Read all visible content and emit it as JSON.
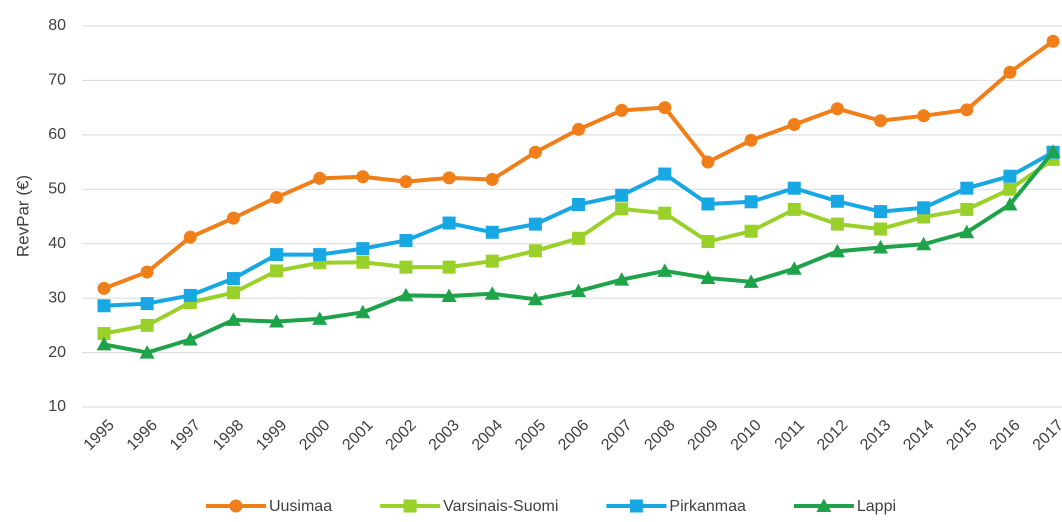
{
  "chart_data": {
    "type": "line",
    "y_label": "RevPar (€)",
    "categories": [
      "1995",
      "1996",
      "1997",
      "1998",
      "1999",
      "2000",
      "2001",
      "2002",
      "2003",
      "2004",
      "2005",
      "2006",
      "2007",
      "2008",
      "2009",
      "2010",
      "2011",
      "2012",
      "2013",
      "2014",
      "2015",
      "2016",
      "2017"
    ],
    "series": [
      {
        "name": "Uusimaa",
        "color": "#f07f1a",
        "marker": "circle",
        "values": [
          31.8,
          34.8,
          41.2,
          44.7,
          48.5,
          52,
          52.3,
          51.4,
          52.1,
          51.8,
          56.8,
          61,
          64.5,
          65,
          55,
          59,
          61.9,
          64.8,
          62.6,
          63.5,
          64.6,
          71.5,
          77.2
        ]
      },
      {
        "name": "Varsinais-Suomi",
        "color": "#99d12a",
        "marker": "square",
        "values": [
          23.5,
          25,
          29.2,
          31,
          35,
          36.5,
          36.6,
          35.7,
          35.7,
          36.8,
          38.7,
          41,
          46.4,
          45.6,
          40.4,
          42.3,
          46.3,
          43.6,
          42.7,
          44.9,
          46.3,
          50,
          55.5
        ]
      },
      {
        "name": "Pirkanmaa",
        "color": "#17a8e3",
        "marker": "square",
        "values": [
          28.6,
          29,
          30.5,
          33.6,
          38,
          38,
          39.1,
          40.6,
          43.8,
          42.1,
          43.6,
          47.2,
          48.9,
          52.8,
          47.3,
          47.7,
          50.2,
          47.8,
          45.9,
          46.6,
          50.2,
          52.4,
          56.8
        ]
      },
      {
        "name": "Lappi",
        "color": "#1fa34a",
        "marker": "triangle",
        "values": [
          21.5,
          20,
          22.4,
          26,
          25.7,
          26.2,
          27.4,
          30.5,
          30.4,
          30.8,
          29.8,
          31.3,
          33.4,
          35,
          33.7,
          33,
          35.4,
          38.6,
          39.3,
          39.9,
          42.1,
          47.2,
          56.9
        ]
      }
    ],
    "ylim": [
      10,
      80
    ],
    "yticks": [
      10,
      20,
      30,
      40,
      50,
      60,
      70,
      80
    ],
    "grid": true,
    "legend": "bottom"
  }
}
